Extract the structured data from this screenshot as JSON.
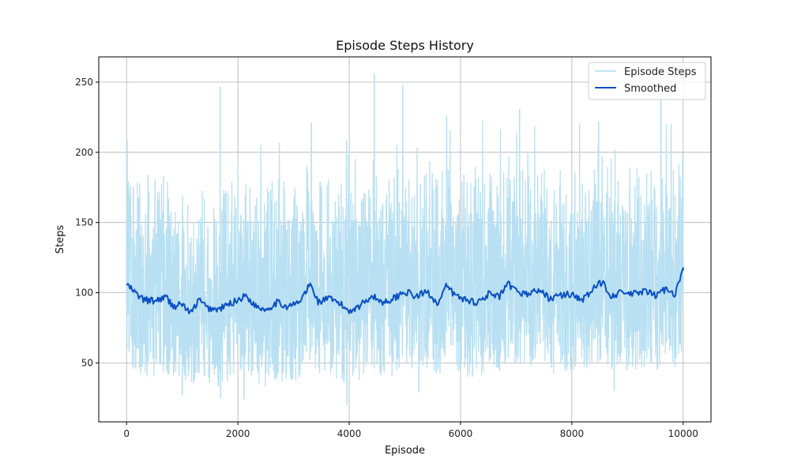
{
  "chart_data": {
    "type": "line",
    "title": "Episode Steps History",
    "xlabel": "Episode",
    "ylabel": "Steps",
    "xlim": [
      -500,
      10500
    ],
    "ylim": [
      8,
      268
    ],
    "xticks": [
      0,
      2000,
      4000,
      6000,
      8000,
      10000
    ],
    "yticks": [
      50,
      100,
      150,
      200,
      250
    ],
    "grid": true,
    "legend_position": "top-right",
    "series": [
      {
        "name": "Episode Steps",
        "color": "#b8e0f2",
        "x": [
          0,
          10000
        ],
        "y_summary": {
          "approx_min": 20,
          "approx_max": 256,
          "approx_mean": 96,
          "episodes": 10000
        },
        "notable_peaks": [
          {
            "x": 10,
            "y": 209
          },
          {
            "x": 1680,
            "y": 247
          },
          {
            "x": 3320,
            "y": 221
          },
          {
            "x": 4450,
            "y": 256
          },
          {
            "x": 4960,
            "y": 248
          },
          {
            "x": 5750,
            "y": 226
          },
          {
            "x": 7060,
            "y": 231
          },
          {
            "x": 8480,
            "y": 222
          },
          {
            "x": 9600,
            "y": 240
          }
        ],
        "notable_troughs": [
          {
            "x": 1000,
            "y": 27
          },
          {
            "x": 1690,
            "y": 25
          },
          {
            "x": 2110,
            "y": 24
          },
          {
            "x": 3960,
            "y": 20
          },
          {
            "x": 5250,
            "y": 29
          },
          {
            "x": 8760,
            "y": 30
          }
        ]
      },
      {
        "name": "Smoothed",
        "color": "#0a4fc4",
        "x": [
          0,
          150,
          300,
          500,
          700,
          850,
          1000,
          1150,
          1300,
          1450,
          1650,
          1850,
          2000,
          2150,
          2300,
          2500,
          2700,
          2900,
          3100,
          3300,
          3450,
          3600,
          3800,
          4000,
          4200,
          4400,
          4600,
          4800,
          5000,
          5200,
          5400,
          5600,
          5750,
          5900,
          6100,
          6300,
          6500,
          6700,
          6850,
          7000,
          7200,
          7400,
          7600,
          7800,
          8000,
          8200,
          8400,
          8550,
          8700,
          8900,
          9100,
          9300,
          9500,
          9700,
          9850,
          10000
        ],
        "y": [
          106,
          100,
          95,
          94,
          97,
          90,
          92,
          85,
          95,
          89,
          88,
          92,
          95,
          98,
          91,
          88,
          93,
          90,
          93,
          106,
          93,
          96,
          93,
          87,
          91,
          98,
          93,
          96,
          101,
          97,
          101,
          92,
          105,
          98,
          95,
          93,
          99,
          97,
          106,
          101,
          99,
          102,
          96,
          98,
          99,
          95,
          103,
          108,
          98,
          100,
          99,
          101,
          98,
          103,
          99,
          116
        ]
      }
    ]
  }
}
